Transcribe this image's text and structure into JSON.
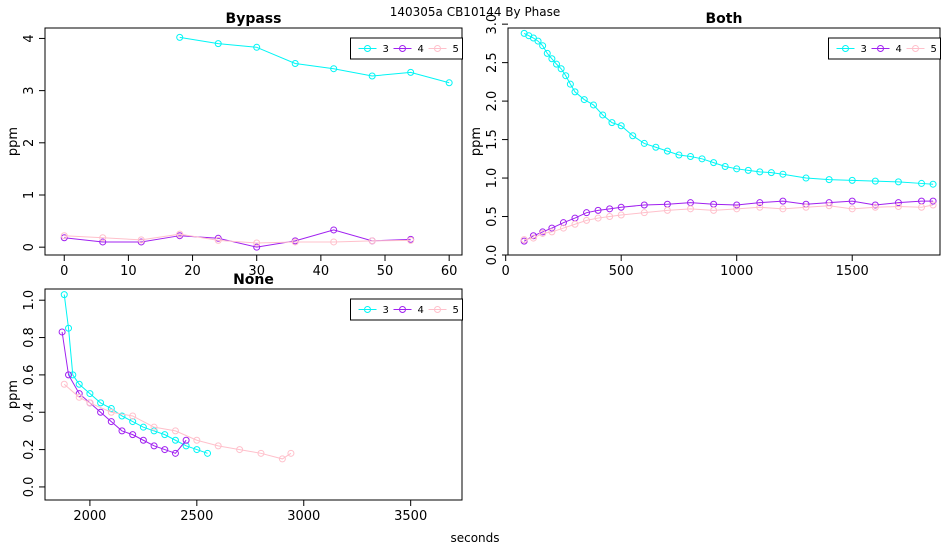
{
  "title": "140305a    CB10144   By Phase",
  "xlabel": "seconds",
  "colors": {
    "3": "#00f5f5",
    "4": "#a020f0",
    "5": "#ffc0cb"
  },
  "chart_data": [
    {
      "type": "line",
      "title": "Bypass",
      "xlabel": "",
      "ylabel": "ppm",
      "xlim": [
        -3,
        62
      ],
      "ylim": [
        -0.15,
        4.2
      ],
      "xticks": [
        0,
        10,
        20,
        30,
        40,
        50,
        60
      ],
      "yticks": [
        0,
        1,
        2,
        3,
        4
      ],
      "legend": [
        "3",
        "4",
        "5"
      ],
      "legend_position": "top-right",
      "series": [
        {
          "name": "3",
          "x": [
            18,
            24,
            30,
            36,
            42,
            48,
            54,
            60
          ],
          "y": [
            4.02,
            3.9,
            3.83,
            3.52,
            3.42,
            3.28,
            3.35,
            3.15
          ]
        },
        {
          "name": "4",
          "x": [
            0,
            6,
            12,
            18,
            24,
            30,
            36,
            42,
            48,
            54
          ],
          "y": [
            0.18,
            0.1,
            0.1,
            0.22,
            0.17,
            0.0,
            0.12,
            0.33,
            0.12,
            0.15
          ]
        },
        {
          "name": "5",
          "x": [
            0,
            6,
            12,
            18,
            24,
            30,
            36,
            42,
            48,
            54
          ],
          "y": [
            0.22,
            0.18,
            0.14,
            0.25,
            0.13,
            0.08,
            0.1,
            0.1,
            0.12,
            0.13
          ]
        }
      ]
    },
    {
      "type": "line",
      "title": "Both",
      "xlabel": "",
      "ylabel": "ppm",
      "xlim": [
        10,
        1880
      ],
      "ylim": [
        0,
        2.95
      ],
      "xticks": [
        0,
        500,
        1000,
        1500
      ],
      "yticks": [
        0.0,
        0.5,
        1.0,
        1.5,
        2.0,
        2.5,
        3.0
      ],
      "legend": [
        "3",
        "4",
        "5"
      ],
      "legend_position": "top-right",
      "series": [
        {
          "name": "3",
          "x": [
            80,
            100,
            120,
            140,
            160,
            180,
            200,
            220,
            240,
            260,
            280,
            300,
            340,
            380,
            420,
            460,
            500,
            550,
            600,
            650,
            700,
            750,
            800,
            850,
            900,
            950,
            1000,
            1050,
            1100,
            1150,
            1200,
            1300,
            1400,
            1500,
            1600,
            1700,
            1800,
            1850
          ],
          "y": [
            2.88,
            2.85,
            2.82,
            2.78,
            2.72,
            2.62,
            2.55,
            2.48,
            2.42,
            2.33,
            2.22,
            2.12,
            2.02,
            1.95,
            1.82,
            1.72,
            1.68,
            1.55,
            1.45,
            1.4,
            1.35,
            1.3,
            1.28,
            1.25,
            1.2,
            1.15,
            1.12,
            1.1,
            1.08,
            1.07,
            1.05,
            1.0,
            0.98,
            0.97,
            0.96,
            0.95,
            0.93,
            0.92
          ]
        },
        {
          "name": "4",
          "x": [
            80,
            120,
            160,
            200,
            250,
            300,
            350,
            400,
            450,
            500,
            600,
            700,
            800,
            900,
            1000,
            1100,
            1200,
            1300,
            1400,
            1500,
            1600,
            1700,
            1800,
            1850
          ],
          "y": [
            0.18,
            0.25,
            0.3,
            0.35,
            0.42,
            0.48,
            0.55,
            0.58,
            0.6,
            0.62,
            0.65,
            0.66,
            0.68,
            0.66,
            0.65,
            0.68,
            0.7,
            0.66,
            0.68,
            0.7,
            0.65,
            0.68,
            0.7,
            0.7
          ]
        },
        {
          "name": "5",
          "x": [
            80,
            120,
            160,
            200,
            250,
            300,
            350,
            400,
            450,
            500,
            600,
            700,
            800,
            900,
            1000,
            1100,
            1200,
            1300,
            1400,
            1500,
            1600,
            1700,
            1800,
            1850
          ],
          "y": [
            0.2,
            0.22,
            0.28,
            0.3,
            0.35,
            0.4,
            0.45,
            0.48,
            0.5,
            0.52,
            0.55,
            0.58,
            0.6,
            0.58,
            0.6,
            0.62,
            0.6,
            0.62,
            0.64,
            0.6,
            0.62,
            0.63,
            0.62,
            0.65
          ]
        }
      ]
    },
    {
      "type": "line",
      "title": "None",
      "xlabel": "seconds",
      "ylabel": "ppm",
      "xlim": [
        1790,
        3740
      ],
      "ylim": [
        -0.07,
        1.06
      ],
      "xticks": [
        2000,
        2500,
        3000,
        3500
      ],
      "yticks": [
        0.0,
        0.2,
        0.4,
        0.6,
        0.8,
        1.0
      ],
      "legend": [
        "3",
        "4",
        "5"
      ],
      "legend_position": "top-right",
      "series": [
        {
          "name": "3",
          "x": [
            1880,
            1900,
            1920,
            1950,
            2000,
            2050,
            2100,
            2150,
            2200,
            2250,
            2300,
            2350,
            2400,
            2450,
            2500,
            2550
          ],
          "y": [
            1.03,
            0.85,
            0.6,
            0.55,
            0.5,
            0.45,
            0.42,
            0.38,
            0.35,
            0.32,
            0.3,
            0.28,
            0.25,
            0.22,
            0.2,
            0.18
          ]
        },
        {
          "name": "4",
          "x": [
            1870,
            1900,
            1950,
            2000,
            2050,
            2100,
            2150,
            2200,
            2250,
            2300,
            2350,
            2400,
            2450
          ],
          "y": [
            0.83,
            0.6,
            0.5,
            0.45,
            0.4,
            0.35,
            0.3,
            0.28,
            0.25,
            0.22,
            0.2,
            0.18,
            0.25
          ]
        },
        {
          "name": "5",
          "x": [
            1880,
            1950,
            2000,
            2100,
            2200,
            2300,
            2400,
            2500,
            2600,
            2700,
            2800,
            2900,
            2940
          ],
          "y": [
            0.55,
            0.48,
            0.45,
            0.4,
            0.38,
            0.32,
            0.3,
            0.25,
            0.22,
            0.2,
            0.18,
            0.15,
            0.18
          ]
        }
      ]
    }
  ]
}
